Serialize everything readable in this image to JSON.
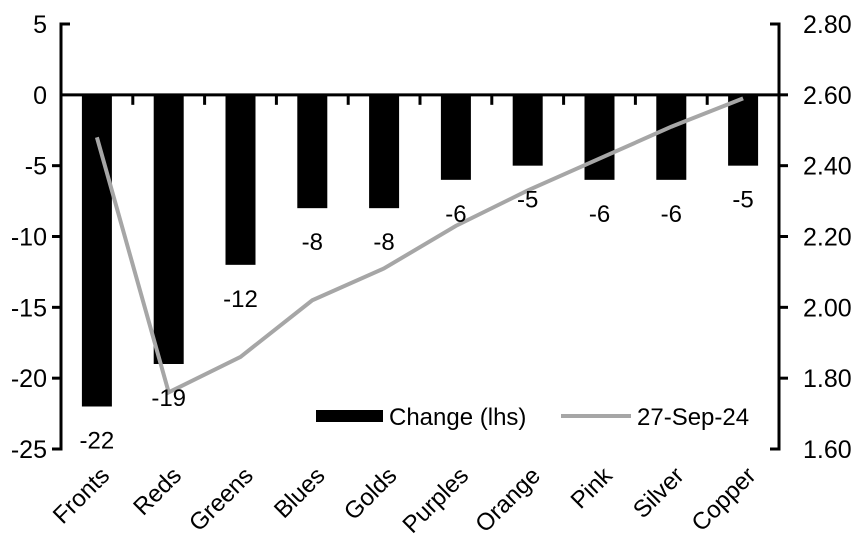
{
  "chart_data": {
    "type": "bar",
    "overlay_type": "line",
    "title": "",
    "xlabel": "",
    "ylabel": "",
    "grid": false,
    "background": "#ffffff",
    "categories": [
      "Fronts",
      "Reds",
      "Greens",
      "Blues",
      "Golds",
      "Purples",
      "Orange",
      "Pink",
      "Silver",
      "Copper"
    ],
    "series": [
      {
        "name": "Change (lhs)",
        "type": "bar",
        "axis": "left",
        "color": "#000000",
        "values": [
          -22,
          -19,
          -12,
          -8,
          -8,
          -6,
          -5,
          -6,
          -6,
          -5
        ],
        "data_labels": [
          "-22",
          "-19",
          "-12",
          "-8",
          "-8",
          "-6",
          "-5",
          "-6",
          "-6",
          "-5"
        ]
      },
      {
        "name": "27-Sep-24",
        "type": "line",
        "axis": "right",
        "color": "#a6a6a6",
        "values": [
          2.48,
          1.76,
          1.86,
          2.02,
          2.11,
          2.23,
          2.33,
          2.42,
          2.51,
          2.59
        ]
      }
    ],
    "left_axis": {
      "min": -25,
      "max": 5,
      "step": 5,
      "tick_labels": [
        "5",
        "0",
        "-5",
        "-10",
        "-15",
        "-20",
        "-25"
      ]
    },
    "right_axis": {
      "min": 1.6,
      "max": 2.8,
      "step": 0.2,
      "tick_labels": [
        "2.80",
        "2.60",
        "2.40",
        "2.20",
        "2.00",
        "1.80",
        "1.60"
      ]
    },
    "legend": {
      "position": "bottom-inside",
      "items": [
        {
          "label": "Change (lhs)",
          "swatch": "bar",
          "color": "#000000"
        },
        {
          "label": "27-Sep-24",
          "swatch": "line",
          "color": "#a6a6a6"
        }
      ]
    },
    "axis_color": "#000000",
    "label_color": "#000000"
  }
}
